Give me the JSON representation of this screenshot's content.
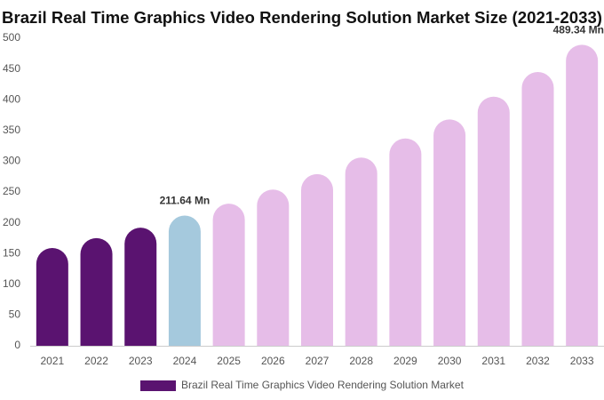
{
  "chart_data": {
    "type": "bar",
    "title": "Brazil Real Time Graphics Video Rendering Solution Market Size (2021-2033)",
    "categories": [
      "2021",
      "2022",
      "2023",
      "2024",
      "2025",
      "2026",
      "2027",
      "2028",
      "2029",
      "2030",
      "2031",
      "2032",
      "2033"
    ],
    "series": [
      {
        "name": "Brazil Real Time Graphics Video Rendering Solution Market",
        "color": "#5a1370",
        "colors": [
          "#5a1370",
          "#5a1370",
          "#5a1370",
          "#a5c9dd",
          "#e6bde8",
          "#e6bde8",
          "#e6bde8",
          "#e6bde8",
          "#e6bde8",
          "#e6bde8",
          "#e6bde8",
          "#e6bde8",
          "#e6bde8"
        ],
        "values": [
          159,
          175,
          192,
          211.64,
          231,
          254,
          279,
          306,
          337,
          368,
          405,
          445,
          489.34
        ],
        "value_labels": [
          null,
          null,
          null,
          "211.64 Mn",
          null,
          null,
          null,
          null,
          null,
          null,
          null,
          null,
          "489.34 Mn"
        ]
      }
    ],
    "ylim": [
      0,
      500
    ],
    "yticks": [
      0,
      50,
      100,
      150,
      200,
      250,
      300,
      350,
      400,
      450,
      500
    ],
    "grid": false
  }
}
